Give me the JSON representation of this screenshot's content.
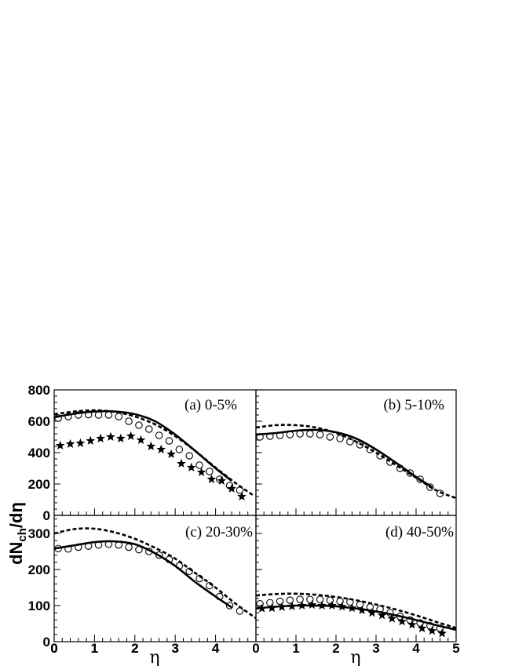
{
  "figure": {
    "ylabel_main": "dN",
    "ylabel_sub": "ch",
    "ylabel_tail": "/dη",
    "xlabel": "η"
  },
  "chart_data": [
    {
      "type": "line",
      "panel": "a",
      "label": "(a) 0-5%",
      "xlim": [
        0,
        5
      ],
      "ylim": [
        0,
        800
      ],
      "xticks": [
        "0",
        "1",
        "2",
        "3",
        "4"
      ],
      "yticks": [
        "0",
        "200",
        "400",
        "600",
        "800"
      ],
      "series": [
        {
          "style": "solid",
          "x": [
            0,
            0.5,
            1.0,
            1.5,
            2.0,
            2.5,
            3.0,
            3.5,
            4.0,
            4.4
          ],
          "y": [
            625,
            648,
            662,
            662,
            645,
            600,
            515,
            410,
            300,
            220
          ]
        },
        {
          "style": "dashed",
          "x": [
            0,
            0.5,
            1.0,
            1.5,
            2.0,
            2.5,
            3.0,
            3.5,
            4.0,
            4.5,
            4.95
          ],
          "y": [
            645,
            662,
            670,
            660,
            630,
            580,
            505,
            410,
            305,
            205,
            125
          ]
        },
        {
          "style": "open-circle",
          "x": [
            0.1,
            0.35,
            0.6,
            0.85,
            1.1,
            1.35,
            1.6,
            1.85,
            2.1,
            2.35,
            2.6,
            2.85,
            3.1,
            3.35,
            3.6,
            3.85,
            4.1,
            4.35,
            4.6
          ],
          "y": [
            620,
            630,
            640,
            642,
            640,
            640,
            630,
            600,
            575,
            550,
            510,
            475,
            420,
            380,
            320,
            280,
            230,
            190,
            160
          ]
        },
        {
          "style": "star",
          "x": [
            0.15,
            0.4,
            0.65,
            0.9,
            1.15,
            1.4,
            1.65,
            1.9,
            2.15,
            2.4,
            2.65,
            2.9,
            3.15,
            3.4,
            3.65,
            3.9,
            4.15,
            4.4,
            4.65
          ],
          "y": [
            445,
            455,
            460,
            475,
            490,
            500,
            490,
            505,
            480,
            440,
            420,
            390,
            330,
            305,
            275,
            230,
            220,
            170,
            120
          ]
        }
      ]
    },
    {
      "type": "line",
      "panel": "b",
      "label": "(b) 5-10%",
      "xlim": [
        0,
        5
      ],
      "ylim": [
        0,
        800
      ],
      "xticks": [],
      "yticks": [],
      "series": [
        {
          "style": "solid",
          "x": [
            0,
            0.5,
            1.0,
            1.5,
            2.0,
            2.5,
            3.0,
            3.5,
            4.0,
            4.4
          ],
          "y": [
            515,
            525,
            540,
            545,
            530,
            490,
            420,
            335,
            245,
            180
          ]
        },
        {
          "style": "dashed",
          "x": [
            0,
            0.5,
            1.0,
            1.5,
            2.0,
            2.5,
            3.0,
            3.5,
            4.0,
            4.5,
            5.0
          ],
          "y": [
            560,
            575,
            575,
            560,
            525,
            470,
            400,
            320,
            240,
            160,
            110
          ]
        },
        {
          "style": "open-circle",
          "x": [
            0.1,
            0.35,
            0.6,
            0.85,
            1.1,
            1.35,
            1.6,
            1.85,
            2.1,
            2.35,
            2.6,
            2.85,
            3.1,
            3.35,
            3.6,
            3.85,
            4.1,
            4.35,
            4.6
          ],
          "y": [
            500,
            505,
            510,
            515,
            520,
            520,
            515,
            500,
            490,
            470,
            450,
            420,
            380,
            340,
            300,
            270,
            230,
            180,
            140
          ]
        }
      ]
    },
    {
      "type": "line",
      "panel": "c",
      "label": "(c) 20-30%",
      "xlim": [
        0,
        5
      ],
      "ylim": [
        0,
        350
      ],
      "xticks": [
        "0",
        "1",
        "2",
        "3",
        "4"
      ],
      "yticks": [
        "0",
        "100",
        "200",
        "300"
      ],
      "series": [
        {
          "style": "solid",
          "x": [
            0,
            0.5,
            1.0,
            1.5,
            2.0,
            2.5,
            3.0,
            3.5,
            4.0,
            4.4
          ],
          "y": [
            258,
            267,
            276,
            278,
            270,
            245,
            210,
            165,
            125,
            95
          ]
        },
        {
          "style": "dashed",
          "x": [
            0,
            0.5,
            1.0,
            1.5,
            2.0,
            2.5,
            3.0,
            3.5,
            4.0,
            4.5,
            5.0
          ],
          "y": [
            300,
            312,
            313,
            303,
            285,
            260,
            230,
            190,
            150,
            105,
            65
          ]
        },
        {
          "style": "open-circle",
          "x": [
            0.1,
            0.35,
            0.6,
            0.85,
            1.1,
            1.35,
            1.6,
            1.85,
            2.1,
            2.35,
            2.6,
            2.85,
            3.1,
            3.35,
            3.6,
            3.85,
            4.1,
            4.35,
            4.6
          ],
          "y": [
            258,
            257,
            262,
            265,
            268,
            270,
            268,
            262,
            255,
            250,
            240,
            228,
            210,
            195,
            175,
            155,
            125,
            100,
            85
          ]
        }
      ]
    },
    {
      "type": "line",
      "panel": "d",
      "label": "(d) 40-50%",
      "xlim": [
        0,
        5
      ],
      "ylim": [
        0,
        350
      ],
      "xticks": [
        "0",
        "1",
        "2",
        "3",
        "4",
        "5"
      ],
      "yticks": [],
      "series": [
        {
          "style": "solid",
          "x": [
            0,
            0.5,
            1.0,
            1.5,
            2.0,
            2.5,
            3.0,
            3.5,
            4.0,
            4.5,
            5.0
          ],
          "y": [
            92,
            97,
            100,
            100,
            98,
            92,
            84,
            73,
            60,
            46,
            33
          ]
        },
        {
          "style": "dashed",
          "x": [
            0,
            0.5,
            1.0,
            1.5,
            2.0,
            2.5,
            3.0,
            3.5,
            4.0,
            4.5,
            5.0
          ],
          "y": [
            128,
            132,
            133,
            130,
            124,
            115,
            103,
            89,
            73,
            55,
            38
          ]
        },
        {
          "style": "open-circle",
          "x": [
            0.1,
            0.35,
            0.6,
            0.85,
            1.1,
            1.35,
            1.6,
            1.85,
            2.1,
            2.35,
            2.6,
            2.85,
            3.1,
            3.35,
            3.6,
            3.85,
            4.1,
            4.35,
            4.6
          ],
          "y": [
            105,
            108,
            112,
            115,
            117,
            117,
            117,
            115,
            112,
            110,
            103,
            96,
            90,
            80,
            70,
            60,
            52,
            44,
            37
          ]
        },
        {
          "style": "star",
          "x": [
            0.15,
            0.4,
            0.65,
            0.9,
            1.15,
            1.4,
            1.65,
            1.9,
            2.15,
            2.4,
            2.65,
            2.9,
            3.15,
            3.4,
            3.65,
            3.9,
            4.15,
            4.4,
            4.65
          ],
          "y": [
            92,
            93,
            96,
            98,
            100,
            102,
            100,
            100,
            97,
            93,
            87,
            80,
            73,
            64,
            56,
            47,
            37,
            30,
            23
          ]
        }
      ]
    }
  ]
}
